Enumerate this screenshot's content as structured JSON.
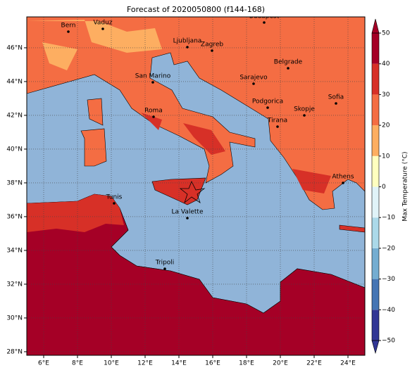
{
  "title": "Forecast of 2020050800 (f144-168)",
  "lon_ticks": [
    {
      "value": 6,
      "label": "6°E"
    },
    {
      "value": 8,
      "label": "8°E"
    },
    {
      "value": 10,
      "label": "10°E"
    },
    {
      "value": 12,
      "label": "12°E"
    },
    {
      "value": 14,
      "label": "14°E"
    },
    {
      "value": 16,
      "label": "16°E"
    },
    {
      "value": 18,
      "label": "18°E"
    },
    {
      "value": 20,
      "label": "20°E"
    },
    {
      "value": 22,
      "label": "22°E"
    },
    {
      "value": 24,
      "label": "24°E"
    }
  ],
  "lat_ticks": [
    {
      "value": 28,
      "label": "28°N"
    },
    {
      "value": 30,
      "label": "30°N"
    },
    {
      "value": 32,
      "label": "32°N"
    },
    {
      "value": 34,
      "label": "34°N"
    },
    {
      "value": 36,
      "label": "36°N"
    },
    {
      "value": 38,
      "label": "38°N"
    },
    {
      "value": 40,
      "label": "40°N"
    },
    {
      "value": 42,
      "label": "42°N"
    },
    {
      "value": 44,
      "label": "44°N"
    },
    {
      "value": 46,
      "label": "46°N"
    }
  ],
  "cities": [
    "Bern",
    "Vaduz",
    "Budapest",
    "Ljubljana",
    "Zagreb",
    "Belgrade",
    "San Marino",
    "Sarajevo",
    "Sofia",
    "Podgorica",
    "Skopje",
    "Roma",
    "Tirana",
    "Athens",
    "Tunis",
    "La Valette",
    "Tripoli"
  ],
  "colorbar": {
    "label": "Max Temperature (°C)",
    "ticks": [
      {
        "value": -50,
        "label": "−50"
      },
      {
        "value": -40,
        "label": "−40"
      },
      {
        "value": -30,
        "label": "−30"
      },
      {
        "value": -20,
        "label": "−20"
      },
      {
        "value": -10,
        "label": "−10"
      },
      0,
      10,
      20,
      30,
      40,
      50
    ],
    "colors": [
      "#313695",
      "#4575b4",
      "#74add1",
      "#abd9e9",
      "#e0f3f8",
      "#ffffbf",
      "#fdae61",
      "#f46d43",
      "#d73027",
      "#a50026"
    ]
  }
}
